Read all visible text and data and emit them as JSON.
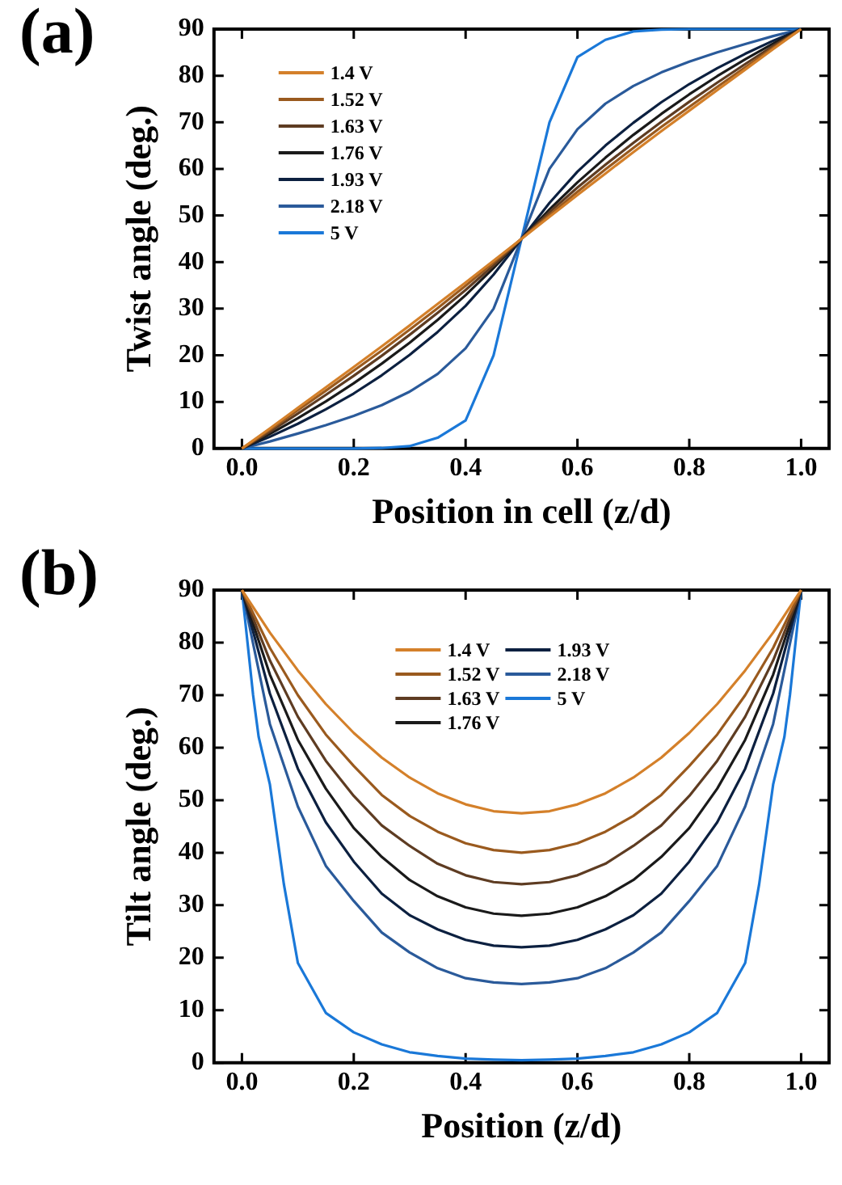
{
  "chart_data": [
    {
      "type": "line",
      "annotations": [
        "(a)"
      ],
      "xlabel": "Position in cell (z/d)",
      "ylabel": "Twist angle (deg.)",
      "xlim": [
        -0.05,
        1.05
      ],
      "xticks": [
        {
          "value": 0,
          "label": "0.0"
        },
        {
          "value": 0.2,
          "label": "0.2"
        },
        {
          "value": 0.4,
          "label": "0.4"
        },
        {
          "value": 0.6,
          "label": "0.6"
        },
        {
          "value": 0.8,
          "label": "0.8"
        },
        {
          "value": 1,
          "label": "1.0"
        }
      ],
      "ylim": [
        0,
        90
      ],
      "yticks": [
        0,
        10,
        20,
        30,
        40,
        50,
        60,
        70,
        80,
        90
      ],
      "grid": false,
      "legend": "top left",
      "marker": "none",
      "line_style": "solid",
      "series": [
        {
          "name": "1.4 V",
          "color": "#d4802a",
          "x": [
            0,
            0.05,
            0.1,
            0.15,
            0.2,
            0.25,
            0.3,
            0.35,
            0.4,
            0.45,
            0.5,
            0.55,
            0.6,
            0.65,
            0.7,
            0.75,
            0.8,
            0.85,
            0.9,
            0.95,
            1
          ],
          "values": [
            0,
            4.3,
            8.7,
            13.1,
            17.5,
            21.9,
            26.4,
            31,
            35.6,
            40.3,
            45,
            49.7,
            54.4,
            59,
            63.6,
            68.1,
            72.5,
            76.9,
            81.3,
            85.7,
            90
          ]
        },
        {
          "name": "1.52 V",
          "color": "#9a5a1e",
          "x": [
            0,
            0.05,
            0.1,
            0.15,
            0.2,
            0.25,
            0.3,
            0.35,
            0.4,
            0.45,
            0.5,
            0.55,
            0.6,
            0.65,
            0.7,
            0.75,
            0.8,
            0.85,
            0.9,
            0.95,
            1
          ],
          "values": [
            0,
            4,
            8.2,
            12.4,
            16.7,
            21,
            25.5,
            30.1,
            34.9,
            39.9,
            45,
            50.1,
            55.1,
            59.9,
            64.5,
            69,
            73.3,
            77.6,
            81.8,
            86,
            90
          ]
        },
        {
          "name": "1.63 V",
          "color": "#5e3c22",
          "x": [
            0,
            0.05,
            0.1,
            0.15,
            0.2,
            0.25,
            0.3,
            0.35,
            0.4,
            0.45,
            0.5,
            0.55,
            0.6,
            0.65,
            0.7,
            0.75,
            0.8,
            0.85,
            0.9,
            0.95,
            1
          ],
          "values": [
            0,
            3.6,
            7.5,
            11.5,
            15.6,
            19.9,
            24.4,
            29.1,
            34,
            39.3,
            45,
            50.7,
            56,
            60.9,
            65.6,
            70.1,
            74.4,
            78.5,
            82.5,
            86.4,
            90
          ]
        },
        {
          "name": "1.76 V",
          "color": "#1a1a1a",
          "x": [
            0,
            0.05,
            0.1,
            0.15,
            0.2,
            0.25,
            0.3,
            0.35,
            0.4,
            0.45,
            0.5,
            0.55,
            0.6,
            0.65,
            0.7,
            0.75,
            0.8,
            0.85,
            0.9,
            0.95,
            1
          ],
          "values": [
            0,
            3.1,
            6.5,
            10.1,
            14,
            18.2,
            22.7,
            27.6,
            32.9,
            38.7,
            45,
            51.3,
            57.1,
            62.4,
            67.3,
            71.8,
            76,
            79.9,
            83.5,
            86.9,
            90
          ]
        },
        {
          "name": "1.93 V",
          "color": "#0c2040",
          "x": [
            0,
            0.05,
            0.1,
            0.15,
            0.2,
            0.25,
            0.3,
            0.35,
            0.4,
            0.45,
            0.5,
            0.55,
            0.6,
            0.65,
            0.7,
            0.75,
            0.8,
            0.85,
            0.9,
            0.95,
            1
          ],
          "values": [
            0,
            2.5,
            5.3,
            8.4,
            11.8,
            15.7,
            20.1,
            25,
            30.6,
            37.3,
            45,
            52.7,
            59.4,
            65,
            69.9,
            74.3,
            78.2,
            81.6,
            84.7,
            87.5,
            90
          ]
        },
        {
          "name": "2.18 V",
          "color": "#2a5a9a",
          "x": [
            0,
            0.05,
            0.1,
            0.15,
            0.2,
            0.25,
            0.3,
            0.35,
            0.4,
            0.45,
            0.5,
            0.55,
            0.6,
            0.65,
            0.7,
            0.75,
            0.8,
            0.85,
            0.9,
            0.95,
            1
          ],
          "values": [
            0,
            1.5,
            3.2,
            5,
            7,
            9.3,
            12.2,
            16,
            21.5,
            30,
            45,
            60,
            68.5,
            74,
            77.8,
            80.7,
            83,
            85,
            86.8,
            88.5,
            90
          ]
        },
        {
          "name": "5 V",
          "color": "#1a78d8",
          "x": [
            0,
            0.05,
            0.1,
            0.15,
            0.2,
            0.25,
            0.3,
            0.35,
            0.4,
            0.45,
            0.5,
            0.55,
            0.6,
            0.65,
            0.7,
            0.75,
            0.8,
            0.85,
            0.9,
            0.95,
            1
          ],
          "values": [
            0,
            0,
            0,
            0,
            0,
            0.1,
            0.5,
            2.3,
            6,
            20,
            45,
            70,
            84,
            87.7,
            89.5,
            89.9,
            90,
            90,
            90,
            90,
            90
          ]
        }
      ]
    },
    {
      "type": "line",
      "annotations": [
        "(b)"
      ],
      "xlabel": "Position (z/d)",
      "ylabel": "Tilt angle (deg.)",
      "xlim": [
        -0.05,
        1.05
      ],
      "xticks": [
        {
          "value": 0,
          "label": "0.0"
        },
        {
          "value": 0.2,
          "label": "0.2"
        },
        {
          "value": 0.4,
          "label": "0.4"
        },
        {
          "value": 0.6,
          "label": "0.6"
        },
        {
          "value": 0.8,
          "label": "0.8"
        },
        {
          "value": 1,
          "label": "1.0"
        }
      ],
      "ylim": [
        0,
        90
      ],
      "yticks": [
        0,
        10,
        20,
        30,
        40,
        50,
        60,
        70,
        80,
        90
      ],
      "grid": false,
      "legend": "top",
      "marker": "none",
      "line_style": "solid",
      "series": [
        {
          "name": "1.4 V",
          "color": "#d4802a",
          "x": [
            0,
            0.05,
            0.1,
            0.15,
            0.2,
            0.25,
            0.3,
            0.35,
            0.4,
            0.45,
            0.5,
            0.55,
            0.6,
            0.65,
            0.7,
            0.75,
            0.8,
            0.85,
            0.9,
            0.95,
            1
          ],
          "values": [
            90,
            81.9,
            74.7,
            68.3,
            62.8,
            58.1,
            54.3,
            51.3,
            49.2,
            47.9,
            47.5,
            47.9,
            49.2,
            51.3,
            54.3,
            58.1,
            62.8,
            68.3,
            74.7,
            81.9,
            90
          ]
        },
        {
          "name": "1.52 V",
          "color": "#9a5a1e",
          "x": [
            0,
            0.05,
            0.1,
            0.15,
            0.2,
            0.25,
            0.3,
            0.35,
            0.4,
            0.45,
            0.5,
            0.55,
            0.6,
            0.65,
            0.7,
            0.75,
            0.8,
            0.85,
            0.9,
            0.95,
            1
          ],
          "values": [
            90,
            79,
            70,
            62.5,
            56.5,
            51,
            47,
            44,
            41.8,
            40.5,
            40,
            40.5,
            41.8,
            44,
            47,
            51,
            56.5,
            62.5,
            70,
            79,
            90
          ]
        },
        {
          "name": "1.63 V",
          "color": "#5e3c22",
          "x": [
            0,
            0.05,
            0.1,
            0.15,
            0.2,
            0.25,
            0.3,
            0.35,
            0.4,
            0.45,
            0.5,
            0.55,
            0.6,
            0.65,
            0.7,
            0.75,
            0.8,
            0.85,
            0.9,
            0.95,
            1
          ],
          "values": [
            90,
            76.6,
            65.9,
            57.5,
            50.8,
            45.2,
            41.3,
            37.9,
            35.7,
            34.4,
            34,
            34.4,
            35.7,
            37.9,
            41.3,
            45.2,
            50.8,
            57.5,
            65.9,
            76.6,
            90
          ]
        },
        {
          "name": "1.76 V",
          "color": "#1a1a1a",
          "x": [
            0,
            0.05,
            0.1,
            0.15,
            0.2,
            0.25,
            0.3,
            0.35,
            0.4,
            0.45,
            0.5,
            0.55,
            0.6,
            0.65,
            0.7,
            0.75,
            0.8,
            0.85,
            0.9,
            0.95,
            1
          ],
          "values": [
            90,
            73.9,
            61.5,
            52.2,
            44.7,
            39.2,
            34.8,
            31.7,
            29.6,
            28.4,
            28,
            28.4,
            29.6,
            31.7,
            34.8,
            39.2,
            44.7,
            52.2,
            61.5,
            73.9,
            90
          ]
        },
        {
          "name": "1.93 V",
          "color": "#0c2040",
          "x": [
            0,
            0.05,
            0.1,
            0.15,
            0.2,
            0.25,
            0.3,
            0.35,
            0.4,
            0.45,
            0.5,
            0.55,
            0.6,
            0.65,
            0.7,
            0.75,
            0.8,
            0.85,
            0.9,
            0.95,
            1
          ],
          "values": [
            90,
            70.3,
            56,
            45.8,
            38.3,
            32.2,
            28.1,
            25.4,
            23.4,
            22.3,
            22,
            22.3,
            23.4,
            25.4,
            28.1,
            32.2,
            38.3,
            45.8,
            56,
            70.3,
            90
          ]
        },
        {
          "name": "2.18 V",
          "color": "#2a5a9a",
          "x": [
            0,
            0.05,
            0.1,
            0.15,
            0.2,
            0.25,
            0.3,
            0.35,
            0.4,
            0.45,
            0.5,
            0.55,
            0.6,
            0.65,
            0.7,
            0.75,
            0.8,
            0.85,
            0.9,
            0.95,
            1
          ],
          "values": [
            90,
            64.5,
            48.8,
            37.5,
            30.8,
            24.8,
            21,
            18,
            16.1,
            15.3,
            15,
            15.3,
            16.1,
            18,
            21,
            24.8,
            30.8,
            37.5,
            48.8,
            64.5,
            90
          ]
        },
        {
          "name": "5 V",
          "color": "#1a78d8",
          "x": [
            0,
            0.01,
            0.02,
            0.03,
            0.05,
            0.075,
            0.1,
            0.15,
            0.2,
            0.25,
            0.3,
            0.35,
            0.4,
            0.45,
            0.5,
            0.55,
            0.6,
            0.65,
            0.7,
            0.75,
            0.8,
            0.85,
            0.9,
            0.925,
            0.95,
            0.97,
            0.98,
            0.99,
            1
          ],
          "values": [
            90,
            80,
            70,
            62,
            53,
            34,
            19,
            9.5,
            5.8,
            3.5,
            2,
            1.3,
            0.8,
            0.6,
            0.5,
            0.6,
            0.8,
            1.3,
            2,
            3.5,
            5.8,
            9.5,
            19,
            34,
            53,
            62,
            70,
            80,
            90
          ]
        }
      ]
    }
  ]
}
